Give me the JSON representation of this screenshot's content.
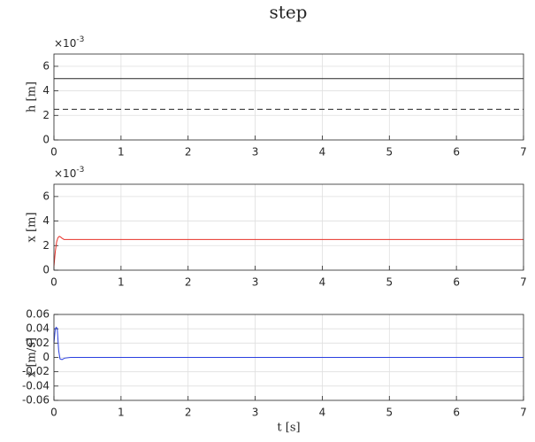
{
  "title": "step",
  "chart_data": [
    {
      "type": "line",
      "ylabel": "h [m]",
      "y_multiplier": {
        "base": "×10",
        "exponent": "-3"
      },
      "x": [
        0,
        7
      ],
      "series": [
        {
          "color": "#262626",
          "linestyle": "solid",
          "values": [
            5,
            5
          ]
        },
        {
          "color": "#262626",
          "linestyle": "dashed",
          "values": [
            2.5,
            2.5
          ]
        }
      ],
      "xlim": [
        0,
        7
      ],
      "xticks": [
        0,
        1,
        2,
        3,
        4,
        5,
        6,
        7
      ],
      "ylim": [
        0,
        7
      ],
      "yticks": [
        0,
        2,
        4,
        6
      ],
      "grid": true
    },
    {
      "type": "line",
      "ylabel": "x [m]",
      "y_multiplier": {
        "base": "×10",
        "exponent": "-3"
      },
      "x": [
        0,
        0.02,
        0.04,
        0.06,
        0.08,
        0.1,
        0.12,
        0.15,
        0.2,
        0.3,
        7
      ],
      "series": [
        {
          "color": "#e8322a",
          "linestyle": "solid",
          "values": [
            0.3,
            1.5,
            2.3,
            2.65,
            2.75,
            2.7,
            2.6,
            2.5,
            2.5,
            2.5,
            2.5
          ]
        }
      ],
      "xlim": [
        0,
        7
      ],
      "xticks": [
        0,
        1,
        2,
        3,
        4,
        5,
        6,
        7
      ],
      "ylim": [
        0,
        7
      ],
      "yticks": [
        0,
        2,
        4,
        6
      ],
      "grid": true
    },
    {
      "type": "line",
      "ylabel": "ẋ [m/s]",
      "xlabel": "t [s]",
      "x": [
        0,
        0.02,
        0.035,
        0.05,
        0.07,
        0.09,
        0.12,
        0.16,
        0.25,
        7
      ],
      "series": [
        {
          "color": "#2a3fe0",
          "linestyle": "solid",
          "values": [
            0.02,
            0.04,
            0.042,
            0.04,
            0.01,
            -0.002,
            -0.003,
            -0.001,
            0,
            0
          ]
        }
      ],
      "xlim": [
        0,
        7
      ],
      "xticks": [
        0,
        1,
        2,
        3,
        4,
        5,
        6,
        7
      ],
      "ylim": [
        -0.06,
        0.06
      ],
      "yticks": [
        -0.06,
        -0.04,
        -0.02,
        0,
        0.02,
        0.04,
        0.06
      ],
      "grid": true
    }
  ]
}
